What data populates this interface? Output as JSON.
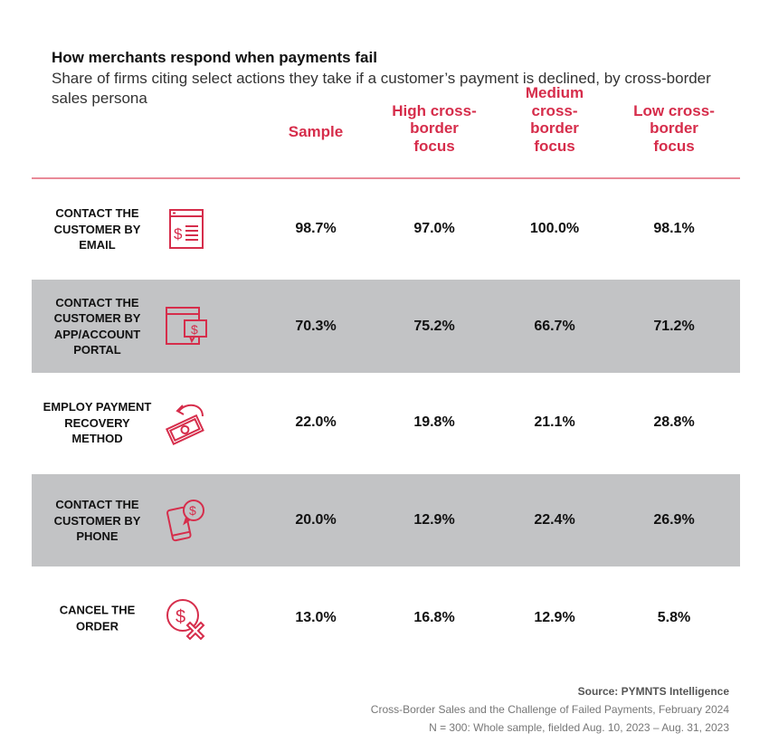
{
  "title": "How merchants respond when payments fail",
  "subtitle": "Share of firms citing select actions they take if a customer’s payment is declined, by cross-border sales persona",
  "colors": {
    "accent": "#d62d4b",
    "rule": "#e98a98",
    "band": "#c2c3c5"
  },
  "chart_data": {
    "type": "table",
    "title": "How merchants respond when payments fail",
    "columns": [
      "Sample",
      "High cross-border focus",
      "Medium cross-border focus",
      "Low cross-border focus"
    ],
    "rows": [
      {
        "label": "CONTACT THE CUSTOMER BY EMAIL",
        "icon": "email-dollar-icon",
        "values": [
          "98.7%",
          "97.0%",
          "100.0%",
          "98.1%"
        ]
      },
      {
        "label": "CONTACT THE CUSTOMER BY APP/ACCOUNT PORTAL",
        "icon": "portal-dollar-icon",
        "values": [
          "70.3%",
          "75.2%",
          "66.7%",
          "71.2%"
        ]
      },
      {
        "label": "EMPLOY PAYMENT RECOVERY METHOD",
        "icon": "money-recovery-icon",
        "values": [
          "22.0%",
          "19.8%",
          "21.1%",
          "28.8%"
        ]
      },
      {
        "label": "CONTACT THE CUSTOMER BY PHONE",
        "icon": "phone-dollar-icon",
        "values": [
          "20.0%",
          "12.9%",
          "22.4%",
          "26.9%"
        ]
      },
      {
        "label": "CANCEL THE ORDER",
        "icon": "cancel-dollar-icon",
        "values": [
          "13.0%",
          "16.8%",
          "12.9%",
          "5.8%"
        ]
      }
    ]
  },
  "footer": {
    "source": "Source: PYMNTS Intelligence",
    "report": "Cross-Border Sales and the Challenge of Failed Payments, February 2024",
    "sample": "N = 300: Whole sample, fielded Aug. 10, 2023 – Aug. 31, 2023"
  }
}
